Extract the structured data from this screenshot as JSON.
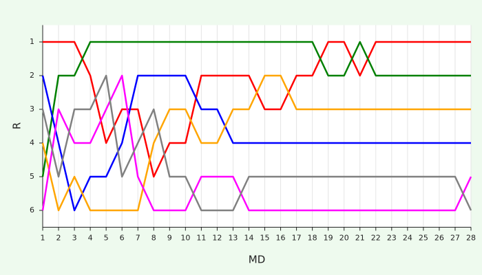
{
  "chart_data": {
    "type": "line",
    "x_label": "MD",
    "y_label": "R",
    "x": [
      1,
      2,
      3,
      4,
      5,
      6,
      7,
      8,
      9,
      10,
      11,
      12,
      13,
      14,
      15,
      16,
      17,
      18,
      19,
      20,
      21,
      22,
      23,
      24,
      25,
      26,
      27,
      28
    ],
    "series": [
      {
        "color": "#ff0000",
        "values": [
          1,
          1,
          1,
          2,
          4,
          3,
          3,
          5,
          4,
          4,
          2,
          2,
          2,
          2,
          3,
          3,
          2,
          2,
          1,
          1,
          2,
          1,
          1,
          1,
          1,
          1,
          1,
          1
        ]
      },
      {
        "color": "#008000",
        "values": [
          5,
          2,
          2,
          1,
          1,
          1,
          1,
          1,
          1,
          1,
          1,
          1,
          1,
          1,
          1,
          1,
          1,
          1,
          2,
          2,
          1,
          2,
          2,
          2,
          2,
          2,
          2,
          2
        ]
      },
      {
        "color": "#0000ff",
        "values": [
          2,
          4,
          6,
          5,
          5,
          4,
          2,
          2,
          2,
          2,
          3,
          3,
          4,
          4,
          4,
          4,
          4,
          4,
          4,
          4,
          4,
          4,
          4,
          4,
          4,
          4,
          4,
          4
        ]
      },
      {
        "color": "#ffa500",
        "values": [
          4,
          6,
          5,
          6,
          6,
          6,
          6,
          4,
          3,
          3,
          4,
          4,
          3,
          3,
          2,
          2,
          3,
          3,
          3,
          3,
          3,
          3,
          3,
          3,
          3,
          3,
          3,
          3
        ]
      },
      {
        "color": "#ff00ff",
        "values": [
          6,
          3,
          4,
          4,
          3,
          2,
          5,
          6,
          6,
          6,
          5,
          5,
          5,
          6,
          6,
          6,
          6,
          6,
          6,
          6,
          6,
          6,
          6,
          6,
          6,
          6,
          6,
          5
        ]
      },
      {
        "color": "#808080",
        "values": [
          3,
          5,
          3,
          3,
          2,
          5,
          4,
          3,
          5,
          5,
          6,
          6,
          6,
          5,
          5,
          5,
          5,
          5,
          5,
          5,
          5,
          5,
          5,
          5,
          5,
          5,
          5,
          6
        ]
      }
    ],
    "xlim": [
      1,
      28
    ],
    "xticks": [
      1,
      2,
      3,
      4,
      5,
      6,
      7,
      8,
      9,
      10,
      11,
      12,
      13,
      14,
      15,
      16,
      17,
      18,
      19,
      20,
      21,
      22,
      23,
      24,
      25,
      26,
      27,
      28
    ],
    "ylim": [
      6.5,
      0.5
    ],
    "yticks": [
      1,
      2,
      3,
      4,
      5,
      6
    ],
    "grid": "x"
  }
}
